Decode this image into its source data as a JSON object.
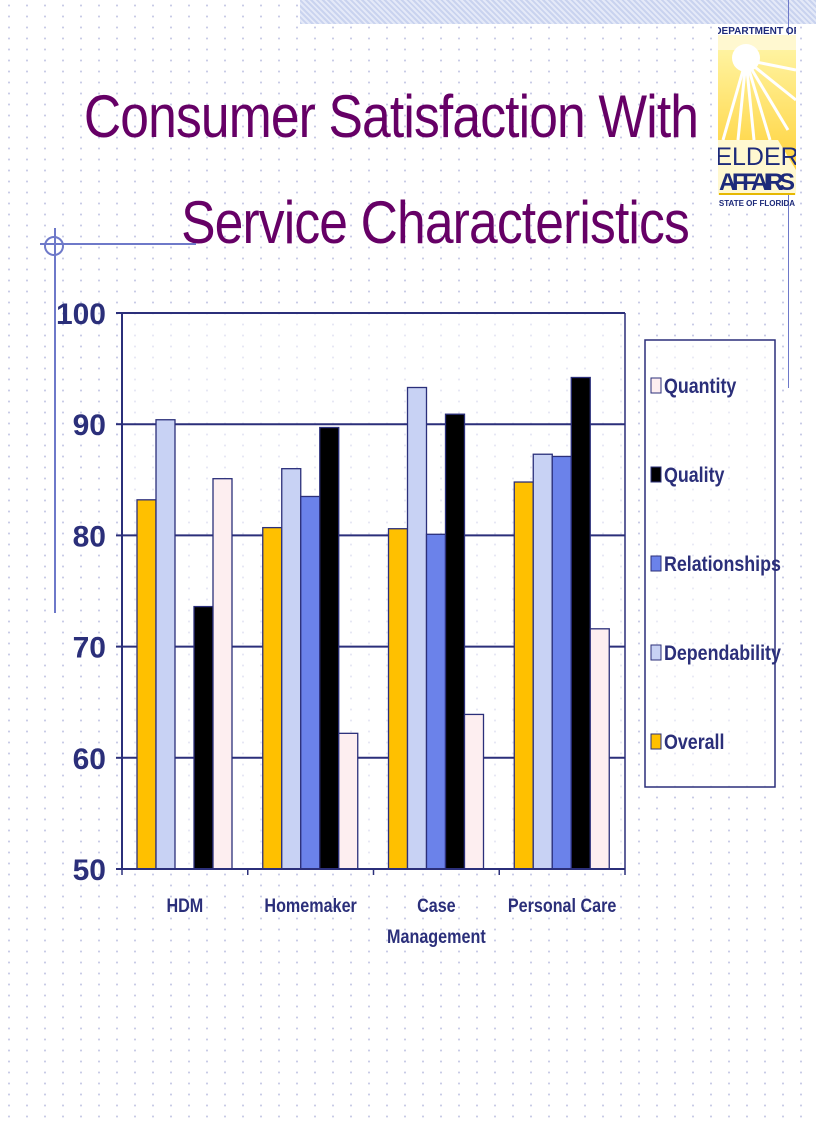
{
  "title_lines": [
    "Consumer Satisfaction With",
    "Service Characteristics"
  ],
  "logo": {
    "line1": "DEPARTMENT OF",
    "line2": "ELDER",
    "line3": "AFFAIRS",
    "line4": "STATE OF FLORIDA"
  },
  "colors": {
    "title": "#660066",
    "axis": "#2b2f7a",
    "label": "#2b2f7a"
  },
  "chart_data": {
    "type": "bar",
    "title": "Consumer Satisfaction With Service Characteristics",
    "categories": [
      "HDM",
      "Homemaker",
      "Case Management",
      "Personal Care"
    ],
    "category_lines": [
      [
        "HDM"
      ],
      [
        "Homemaker"
      ],
      [
        "Case",
        "Management"
      ],
      [
        "Personal Care"
      ]
    ],
    "ylim": [
      50,
      100
    ],
    "yticks": [
      50,
      60,
      70,
      80,
      90,
      100
    ],
    "grid": true,
    "legend_position": "right",
    "series": [
      {
        "name": "Overall",
        "color": "#ffc000",
        "values": [
          83.2,
          80.7,
          80.6,
          84.8
        ]
      },
      {
        "name": "Dependability",
        "color": "#c8d2f4",
        "values": [
          90.4,
          86.0,
          93.3,
          87.3
        ]
      },
      {
        "name": "Relationships",
        "color": "#6b82ea",
        "values": [
          null,
          83.5,
          80.1,
          87.1
        ]
      },
      {
        "name": "Quality",
        "color": "#000000",
        "values": [
          73.6,
          89.7,
          90.9,
          94.2
        ]
      },
      {
        "name": "Quantity",
        "color": "#fdeef0",
        "values": [
          85.1,
          62.2,
          63.9,
          71.6
        ]
      }
    ],
    "legend_order": [
      "Quantity",
      "Quality",
      "Relationships",
      "Dependability",
      "Overall"
    ]
  }
}
